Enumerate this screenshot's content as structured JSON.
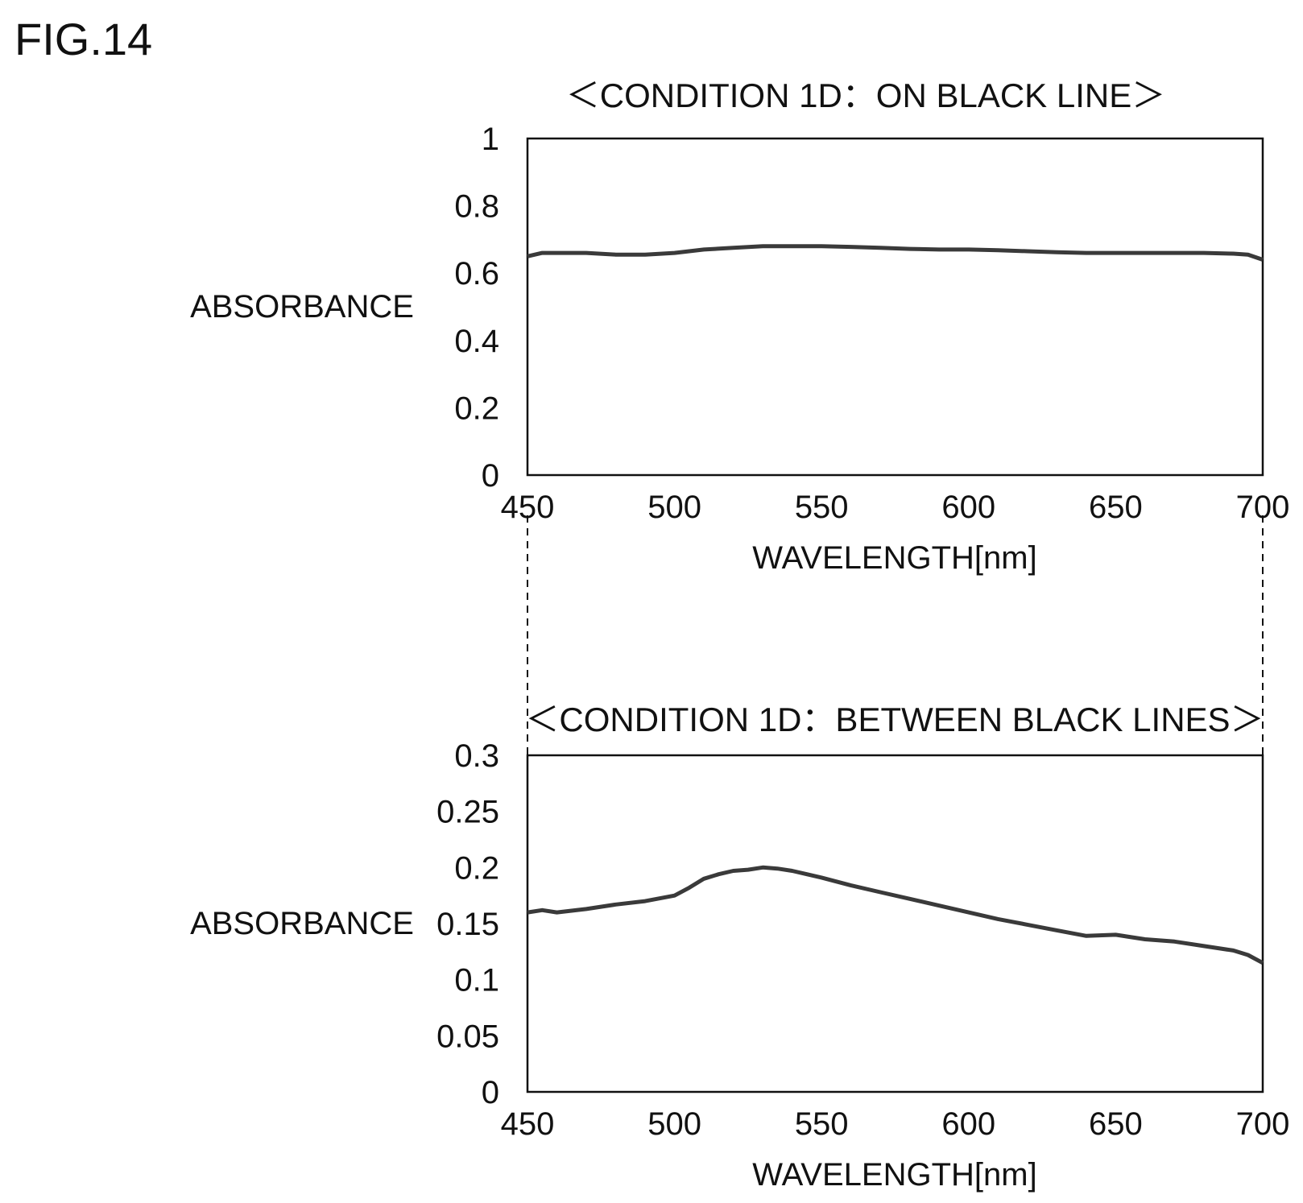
{
  "figure_label": "FIG.14",
  "colors": {
    "ink": "#111111",
    "trace": "#3a3a3a",
    "background": "#ffffff"
  },
  "chart_data": [
    {
      "type": "line",
      "title": "＜CONDITION 1D：ON BLACK LINE＞",
      "xlabel": "WAVELENGTH[nm]",
      "ylabel": "ABSORBANCE",
      "xlim": [
        450,
        700
      ],
      "ylim": [
        0,
        1
      ],
      "xticks": [
        "450",
        "500",
        "550",
        "600",
        "650",
        "700"
      ],
      "yticks": [
        "0",
        "0.2",
        "0.4",
        "0.6",
        "0.8",
        "1"
      ],
      "grid": false,
      "legend": "none",
      "series": [
        {
          "x": [
            450,
            455,
            460,
            470,
            480,
            490,
            500,
            510,
            520,
            530,
            540,
            550,
            560,
            570,
            580,
            590,
            600,
            610,
            620,
            630,
            640,
            650,
            660,
            670,
            680,
            690,
            695,
            700
          ],
          "y": [
            0.65,
            0.66,
            0.66,
            0.66,
            0.655,
            0.655,
            0.66,
            0.67,
            0.675,
            0.68,
            0.68,
            0.68,
            0.678,
            0.675,
            0.672,
            0.67,
            0.67,
            0.668,
            0.665,
            0.662,
            0.66,
            0.66,
            0.66,
            0.66,
            0.66,
            0.658,
            0.655,
            0.64
          ]
        }
      ]
    },
    {
      "type": "line",
      "title": "＜CONDITION 1D：BETWEEN BLACK LINES＞",
      "xlabel": "WAVELENGTH[nm]",
      "ylabel": "ABSORBANCE",
      "xlim": [
        450,
        700
      ],
      "ylim": [
        0,
        0.3
      ],
      "xticks": [
        "450",
        "500",
        "550",
        "600",
        "650",
        "700"
      ],
      "yticks": [
        "0",
        "0.05",
        "0.1",
        "0.15",
        "0.2",
        "0.25",
        "0.3"
      ],
      "grid": false,
      "legend": "none",
      "series": [
        {
          "x": [
            450,
            455,
            460,
            470,
            480,
            490,
            500,
            505,
            510,
            515,
            520,
            525,
            530,
            535,
            540,
            545,
            550,
            560,
            570,
            580,
            590,
            600,
            610,
            620,
            630,
            640,
            650,
            660,
            670,
            680,
            690,
            695,
            700
          ],
          "y": [
            0.16,
            0.162,
            0.16,
            0.163,
            0.167,
            0.17,
            0.175,
            0.182,
            0.19,
            0.194,
            0.197,
            0.198,
            0.2,
            0.199,
            0.197,
            0.194,
            0.191,
            0.184,
            0.178,
            0.172,
            0.166,
            0.16,
            0.154,
            0.149,
            0.144,
            0.139,
            0.14,
            0.136,
            0.134,
            0.13,
            0.126,
            0.122,
            0.115
          ]
        }
      ]
    }
  ]
}
